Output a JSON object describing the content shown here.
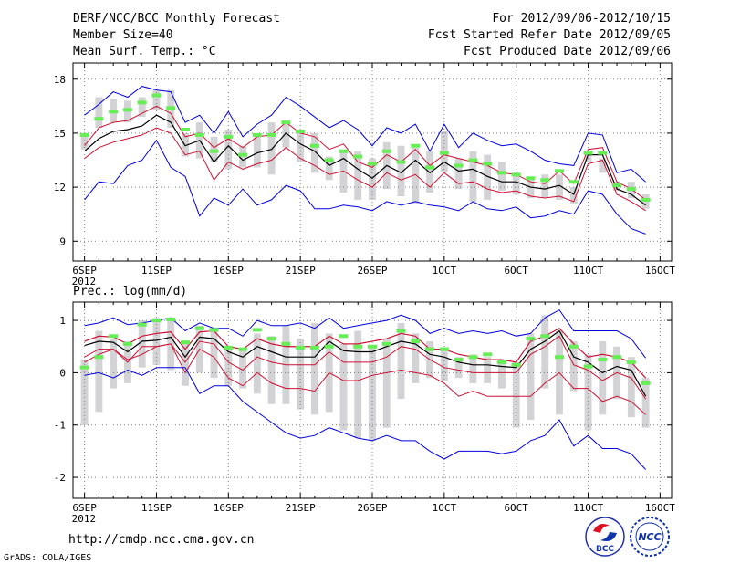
{
  "header": {
    "left_lines": [
      "DERF/NCC/BCC Monthly Forecast",
      "Member Size=40",
      "Mean Surf. Temp.: °C"
    ],
    "right_lines": [
      "For 2012/09/06-2012/10/15",
      "Fcst Started Refer Date 2012/09/05",
      "Fcst Produced Date 2012/09/06"
    ]
  },
  "footer": {
    "url": "http://cmdp.ncc.cma.gov.cn",
    "grads": "GrADS: COLA/IGES",
    "logo_bcc": "BCC",
    "logo_ncc": "NCC"
  },
  "colors": {
    "bar": "#d3d3d6",
    "ens_mean": "#66ee55",
    "median": "#000000",
    "inner": "#cc1133",
    "outer": "#0000dd",
    "grid": "#808080"
  },
  "chart_data": [
    {
      "type": "line",
      "title": "Mean Surf. Temp.: °C",
      "x_tick_labels": [
        "6SEP",
        "11SEP",
        "16SEP",
        "21SEP",
        "26SEP",
        "1OCT",
        "6OCT",
        "11OCT",
        "16OCT"
      ],
      "x_tick_days": [
        0,
        5,
        10,
        15,
        20,
        25,
        30,
        35,
        40
      ],
      "x_sublabel": "2012",
      "xlim": [
        -0.8,
        40.8
      ],
      "ylim": [
        7.9,
        18.9
      ],
      "y_ticks": [
        9,
        12,
        15,
        18
      ],
      "x": [
        0,
        1,
        2,
        3,
        4,
        5,
        6,
        7,
        8,
        9,
        10,
        11,
        12,
        13,
        14,
        15,
        16,
        17,
        18,
        19,
        20,
        21,
        22,
        23,
        24,
        25,
        26,
        27,
        28,
        29,
        30,
        31,
        32,
        33,
        34,
        35,
        36,
        37,
        38,
        39
      ],
      "series": [
        {
          "name": "max",
          "role": "outer",
          "values": [
            16.0,
            16.6,
            17.3,
            17.0,
            17.6,
            17.4,
            17.3,
            15.6,
            16.0,
            15.0,
            16.2,
            14.8,
            15.5,
            16.0,
            17.0,
            16.5,
            15.9,
            15.3,
            15.7,
            15.2,
            14.3,
            15.3,
            15.0,
            15.5,
            14.0,
            15.5,
            14.2,
            15.0,
            14.6,
            14.3,
            14.4,
            14.0,
            13.5,
            13.3,
            13.2,
            15.0,
            14.9,
            12.8,
            13.0,
            12.3
          ]
        },
        {
          "name": "upper",
          "role": "inner",
          "values": [
            14.3,
            15.3,
            15.6,
            15.7,
            16.1,
            16.5,
            16.1,
            14.8,
            15.0,
            14.2,
            14.7,
            14.2,
            14.8,
            14.9,
            15.6,
            15.0,
            14.8,
            14.1,
            14.4,
            13.4,
            13.1,
            13.8,
            13.4,
            14.1,
            13.2,
            13.8,
            13.6,
            13.4,
            13.2,
            12.8,
            12.7,
            12.3,
            12.2,
            12.9,
            12.2,
            14.1,
            14.2,
            12.3,
            11.9,
            11.3
          ]
        },
        {
          "name": "median",
          "role": "median",
          "values": [
            14.0,
            14.7,
            15.1,
            15.2,
            15.4,
            16.0,
            15.6,
            14.3,
            14.6,
            13.4,
            14.3,
            13.5,
            13.9,
            14.1,
            15.0,
            14.4,
            14.0,
            13.2,
            13.6,
            13.0,
            12.5,
            13.2,
            12.8,
            13.5,
            12.8,
            13.4,
            12.9,
            13.0,
            12.6,
            12.3,
            12.3,
            12.0,
            11.9,
            12.1,
            11.6,
            13.8,
            13.8,
            11.9,
            11.6,
            11.0
          ]
        },
        {
          "name": "lower",
          "role": "inner",
          "values": [
            13.6,
            14.2,
            14.5,
            14.7,
            14.9,
            15.3,
            15.0,
            13.8,
            14.0,
            12.4,
            13.4,
            13.0,
            13.3,
            13.5,
            14.2,
            13.6,
            13.2,
            12.7,
            12.9,
            12.4,
            12.0,
            12.8,
            12.4,
            12.7,
            12.0,
            12.8,
            12.2,
            12.3,
            11.9,
            11.7,
            11.8,
            11.5,
            11.4,
            11.5,
            11.2,
            13.3,
            13.5,
            11.6,
            11.2,
            10.7
          ]
        },
        {
          "name": "min",
          "role": "outer",
          "values": [
            11.3,
            12.3,
            12.2,
            13.2,
            13.5,
            14.6,
            13.1,
            12.6,
            10.4,
            11.4,
            11.0,
            11.9,
            11.0,
            11.3,
            12.1,
            11.8,
            10.8,
            10.8,
            11.0,
            10.9,
            10.7,
            11.2,
            11.0,
            11.2,
            11.0,
            10.9,
            10.7,
            11.2,
            10.8,
            10.7,
            10.9,
            10.3,
            10.4,
            10.7,
            10.5,
            11.8,
            11.6,
            10.5,
            9.7,
            9.4
          ]
        }
      ],
      "box_low": [
        14.1,
        15.3,
        15.6,
        15.6,
        15.9,
        16.3,
        15.3,
        13.7,
        13.6,
        13.4,
        13.0,
        13.1,
        13.1,
        12.7,
        14.2,
        13.4,
        12.8,
        12.4,
        11.7,
        11.3,
        11.3,
        11.9,
        11.5,
        11.1,
        11.7,
        12.8,
        11.9,
        11.2,
        11.3,
        11.8,
        11.6,
        11.4,
        11.4,
        11.3,
        11.1,
        13.4,
        12.8,
        11.8,
        11.4,
        10.8
      ],
      "box_high": [
        15.0,
        17.0,
        16.9,
        16.8,
        17.0,
        17.4,
        17.4,
        15.0,
        15.6,
        14.8,
        15.2,
        14.3,
        15.0,
        15.6,
        15.6,
        15.1,
        15.0,
        13.7,
        14.0,
        14.0,
        13.6,
        14.5,
        14.3,
        14.2,
        14.0,
        15.1,
        13.6,
        14.0,
        13.8,
        13.4,
        12.7,
        12.5,
        12.7,
        12.7,
        12.0,
        14.0,
        13.6,
        12.3,
        12.3,
        11.6
      ],
      "ens_mean": [
        14.9,
        15.8,
        16.2,
        16.3,
        16.7,
        17.1,
        16.4,
        15.2,
        14.9,
        14.0,
        14.8,
        13.8,
        14.9,
        14.9,
        15.6,
        15.1,
        14.3,
        13.5,
        14.0,
        13.7,
        13.3,
        14.0,
        13.4,
        14.3,
        13.1,
        13.9,
        13.2,
        13.5,
        13.3,
        12.8,
        12.7,
        12.5,
        12.4,
        12.9,
        12.3,
        13.9,
        13.9,
        12.1,
        11.9,
        11.3
      ]
    },
    {
      "type": "line",
      "title": "Prec.: log(mm/d)",
      "x_tick_labels": [
        "6SEP",
        "11SEP",
        "16SEP",
        "21SEP",
        "26SEP",
        "1OCT",
        "6OCT",
        "11OCT",
        "16OCT"
      ],
      "x_tick_days": [
        0,
        5,
        10,
        15,
        20,
        25,
        30,
        35,
        40
      ],
      "x_sublabel": "2012",
      "xlim": [
        -0.8,
        40.8
      ],
      "ylim": [
        -2.4,
        1.35
      ],
      "y_ticks": [
        -2,
        -1,
        0,
        1
      ],
      "x": [
        0,
        1,
        2,
        3,
        4,
        5,
        6,
        7,
        8,
        9,
        10,
        11,
        12,
        13,
        14,
        15,
        16,
        17,
        18,
        19,
        20,
        21,
        22,
        23,
        24,
        25,
        26,
        27,
        28,
        29,
        30,
        31,
        32,
        33,
        34,
        35,
        36,
        37,
        38,
        39
      ],
      "series": [
        {
          "name": "max",
          "role": "outer",
          "values": [
            0.9,
            0.95,
            1.05,
            0.92,
            0.95,
            1.0,
            1.05,
            0.8,
            0.95,
            0.85,
            0.85,
            0.7,
            1.0,
            0.9,
            0.9,
            0.95,
            0.85,
            1.05,
            0.85,
            0.9,
            0.95,
            1.0,
            1.1,
            1.0,
            0.75,
            0.85,
            0.75,
            0.8,
            0.75,
            0.8,
            0.7,
            0.75,
            1.05,
            1.2,
            0.8,
            0.8,
            0.8,
            0.8,
            0.65,
            0.28
          ]
        },
        {
          "name": "upper",
          "role": "inner",
          "values": [
            0.6,
            0.7,
            0.68,
            0.55,
            0.7,
            0.75,
            0.78,
            0.45,
            0.78,
            0.8,
            0.5,
            0.45,
            0.65,
            0.55,
            0.5,
            0.5,
            0.5,
            0.7,
            0.55,
            0.55,
            0.6,
            0.65,
            0.75,
            0.7,
            0.45,
            0.45,
            0.35,
            0.3,
            0.25,
            0.25,
            0.2,
            0.6,
            0.7,
            0.85,
            0.55,
            0.3,
            0.35,
            0.3,
            0.2,
            -0.1
          ]
        },
        {
          "name": "median",
          "role": "median",
          "values": [
            0.52,
            0.6,
            0.58,
            0.4,
            0.6,
            0.62,
            0.68,
            0.3,
            0.68,
            0.65,
            0.4,
            0.3,
            0.5,
            0.4,
            0.3,
            0.3,
            0.3,
            0.6,
            0.42,
            0.4,
            0.4,
            0.5,
            0.6,
            0.55,
            0.35,
            0.3,
            0.2,
            0.15,
            0.15,
            0.12,
            0.1,
            0.45,
            0.6,
            0.8,
            0.3,
            0.2,
            0.0,
            0.12,
            0.05,
            -0.45
          ]
        },
        {
          "name": "lower",
          "role": "inner",
          "values": [
            0.3,
            0.45,
            0.45,
            0.2,
            0.5,
            0.5,
            0.55,
            0.2,
            0.6,
            0.55,
            0.2,
            0.05,
            0.3,
            0.2,
            0.15,
            0.15,
            0.15,
            0.4,
            0.2,
            0.2,
            0.2,
            0.3,
            0.5,
            0.45,
            0.25,
            0.1,
            0.05,
            0.0,
            0.0,
            0.0,
            0.0,
            0.35,
            0.5,
            0.7,
            0.15,
            0.05,
            -0.15,
            0.0,
            -0.1,
            -0.5
          ]
        },
        {
          "name": "lower_red",
          "role": "inner",
          "values": [
            0.2,
            0.35,
            0.45,
            0.25,
            0.35,
            0.5,
            0.55,
            0.0,
            0.45,
            0.3,
            -0.1,
            -0.25,
            0.0,
            -0.2,
            -0.3,
            -0.3,
            -0.35,
            0.0,
            -0.15,
            -0.15,
            -0.05,
            0.0,
            0.05,
            0.0,
            -0.05,
            -0.2,
            -0.45,
            -0.35,
            -0.45,
            -0.45,
            -0.45,
            -0.45,
            -0.2,
            0.0,
            -0.3,
            -0.3,
            -0.55,
            -0.45,
            -0.55,
            -0.8
          ]
        },
        {
          "name": "min",
          "role": "outer",
          "values": [
            -0.05,
            0.0,
            -0.1,
            0.05,
            -0.05,
            0.1,
            0.1,
            0.1,
            -0.4,
            -0.25,
            -0.25,
            -0.55,
            -0.75,
            -0.95,
            -1.15,
            -1.25,
            -1.2,
            -1.05,
            -1.15,
            -1.25,
            -1.3,
            -1.2,
            -1.3,
            -1.3,
            -1.5,
            -1.65,
            -1.5,
            -1.5,
            -1.5,
            -1.55,
            -1.5,
            -1.3,
            -1.2,
            -0.9,
            -1.4,
            -1.2,
            -1.45,
            -1.45,
            -1.55,
            -1.85
          ]
        },
        {
          "name": "top_red_left",
          "role": "inner",
          "values": [
            0.6,
            0.7,
            0.68,
            0.55,
            0.7,
            0.75,
            0.78,
            0.45,
            0.78,
            0.8,
            0.5,
            0.45,
            0.65,
            0.55,
            0.5,
            0.5,
            0.5,
            0.7,
            0.55,
            0.55,
            0.6,
            0.65,
            0.75,
            0.7,
            0.45,
            0.45,
            0.35,
            0.3,
            0.25,
            0.25,
            0.2,
            0.6,
            0.7,
            0.85,
            0.55,
            0.3,
            0.35,
            0.3,
            0.2,
            -0.1
          ]
        }
      ],
      "box_low": [
        -1.0,
        -0.75,
        -0.3,
        -0.2,
        0.1,
        0.15,
        0.05,
        -0.25,
        0.0,
        -0.1,
        -0.25,
        -0.3,
        -0.4,
        -0.6,
        -0.6,
        -0.7,
        -0.8,
        -0.75,
        -1.1,
        -1.25,
        -1.3,
        -1.05,
        -0.5,
        -0.2,
        -0.1,
        -0.15,
        -0.1,
        -0.2,
        -0.2,
        -0.3,
        -1.05,
        -0.9,
        -0.3,
        -0.8,
        -0.35,
        -1.1,
        -0.8,
        -0.5,
        -0.85,
        -1.05
      ],
      "box_high": [
        0.25,
        0.8,
        0.65,
        0.6,
        1.0,
        1.05,
        1.05,
        0.6,
        0.9,
        0.85,
        0.5,
        0.45,
        0.75,
        0.7,
        0.9,
        0.65,
        0.95,
        0.75,
        0.55,
        0.8,
        0.5,
        0.65,
        0.95,
        0.75,
        0.6,
        0.45,
        0.3,
        0.35,
        0.3,
        0.25,
        0.2,
        0.75,
        1.1,
        0.8,
        0.6,
        0.35,
        0.6,
        0.5,
        0.3,
        -0.1
      ],
      "ens_mean": [
        0.1,
        0.3,
        0.7,
        0.55,
        0.92,
        1.0,
        1.02,
        0.58,
        0.85,
        0.82,
        0.48,
        0.45,
        0.82,
        0.65,
        0.55,
        0.48,
        0.48,
        0.5,
        0.7,
        0.5,
        0.5,
        0.55,
        0.8,
        0.6,
        0.45,
        0.45,
        0.25,
        0.3,
        0.35,
        0.2,
        0.15,
        0.65,
        0.7,
        0.3,
        0.5,
        0.12,
        0.25,
        0.3,
        0.2,
        -0.2
      ]
    }
  ]
}
